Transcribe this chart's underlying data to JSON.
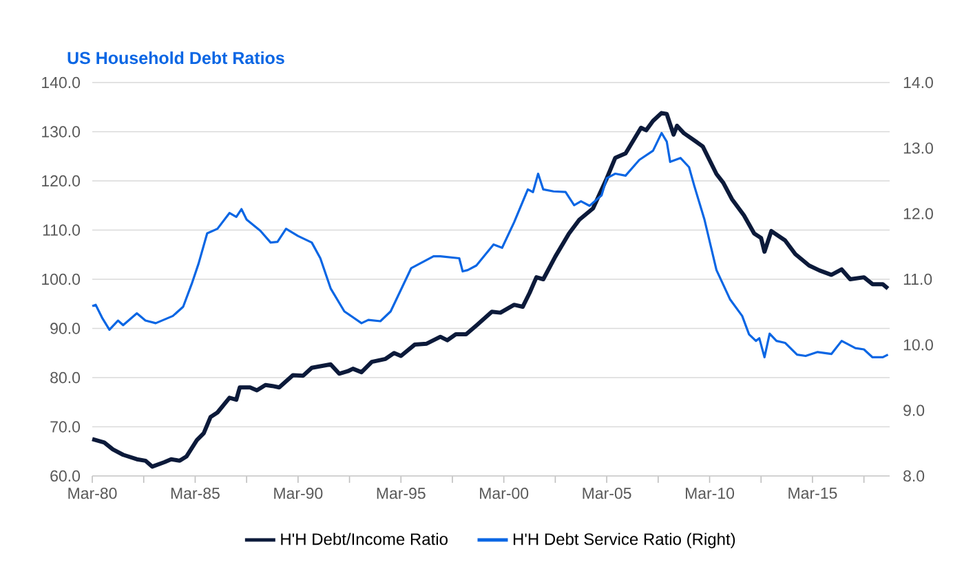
{
  "chart_data": {
    "type": "line",
    "title": "US Household  Debt Ratios",
    "xlim": [
      "1980-03",
      "2018-12"
    ],
    "xticks": [
      {
        "value": "1980-03",
        "label": "Mar-80"
      },
      {
        "value": "1982-09",
        "label": null
      },
      {
        "value": "1985-03",
        "label": "Mar-85"
      },
      {
        "value": "1987-09",
        "label": null
      },
      {
        "value": "1990-03",
        "label": "Mar-90"
      },
      {
        "value": "1992-09",
        "label": null
      },
      {
        "value": "1995-03",
        "label": "Mar-95"
      },
      {
        "value": "1997-09",
        "label": null
      },
      {
        "value": "2000-03",
        "label": "Mar-00"
      },
      {
        "value": "2002-09",
        "label": null
      },
      {
        "value": "2005-03",
        "label": "Mar-05"
      },
      {
        "value": "2007-09",
        "label": null
      },
      {
        "value": "2010-03",
        "label": "Mar-10"
      },
      {
        "value": "2012-09",
        "label": null
      },
      {
        "value": "2015-03",
        "label": "Mar-15"
      },
      {
        "value": "2017-09",
        "label": null
      }
    ],
    "ylim": [
      60,
      140
    ],
    "yticks": [
      {
        "value": 60,
        "label": "60.0"
      },
      {
        "value": 70,
        "label": "70.0"
      },
      {
        "value": 80,
        "label": "80.0"
      },
      {
        "value": 90,
        "label": "90.0"
      },
      {
        "value": 100,
        "label": "100.0"
      },
      {
        "value": 110,
        "label": "110.0"
      },
      {
        "value": 120,
        "label": "120.0"
      },
      {
        "value": 130,
        "label": "130.0"
      },
      {
        "value": 140,
        "label": "140.0"
      }
    ],
    "y2lim": [
      8,
      14
    ],
    "y2ticks": [
      {
        "value": 8,
        "label": "8.0"
      },
      {
        "value": 9,
        "label": "9.0"
      },
      {
        "value": 10,
        "label": "10.0"
      },
      {
        "value": 11,
        "label": "11.0"
      },
      {
        "value": 12,
        "label": "12.0"
      },
      {
        "value": 13,
        "label": "13.0"
      },
      {
        "value": 14,
        "label": "14.0"
      }
    ],
    "grid": "y",
    "legend": "bottom",
    "series": [
      {
        "name": "H'H Debt/Income Ratio",
        "color": "#0c1a3a",
        "x": [
          "1980-03",
          "1980-10",
          "1981-03",
          "1981-09",
          "1982-05",
          "1982-10",
          "1983-02",
          "1983-09",
          "1984-01",
          "1984-06",
          "1984-10",
          "1985-04",
          "1985-08",
          "1985-12",
          "1986-04",
          "1986-11",
          "1987-03",
          "1987-05",
          "1987-11",
          "1988-03",
          "1988-08",
          "1988-12",
          "1989-04",
          "1989-12",
          "1990-06",
          "1990-11",
          "1991-10",
          "1992-03",
          "1992-08",
          "1992-11",
          "1993-04",
          "1993-10",
          "1994-06",
          "1994-11",
          "1995-03",
          "1995-11",
          "1996-06",
          "1997-02",
          "1997-06",
          "1997-11",
          "1998-05",
          "1998-11",
          "1999-08",
          "2000-01",
          "2000-09",
          "2001-02",
          "2001-06",
          "2001-10",
          "2002-02",
          "2002-09",
          "2003-05",
          "2003-11",
          "2004-07",
          "2005-03",
          "2005-08",
          "2006-02",
          "2006-11",
          "2007-02",
          "2007-06",
          "2007-11",
          "2008-02",
          "2008-06",
          "2008-08",
          "2008-12",
          "2009-07",
          "2009-11",
          "2010-07",
          "2010-11",
          "2011-04",
          "2011-11",
          "2012-05",
          "2012-09",
          "2012-11",
          "2013-03",
          "2013-11",
          "2014-05",
          "2015-01",
          "2015-07",
          "2016-02",
          "2016-08",
          "2017-01",
          "2017-09",
          "2018-02",
          "2018-08",
          "2018-11"
        ],
        "values": [
          67.5,
          66.8,
          65.4,
          64.3,
          63.4,
          63.1,
          61.9,
          62.8,
          63.4,
          63.1,
          64.0,
          67.3,
          68.7,
          72.0,
          72.9,
          75.9,
          75.5,
          78.0,
          78.0,
          77.4,
          78.5,
          78.3,
          78.0,
          80.5,
          80.4,
          82.0,
          82.7,
          80.8,
          81.3,
          81.8,
          81.1,
          83.2,
          83.8,
          85.0,
          84.4,
          86.7,
          86.9,
          88.3,
          87.6,
          88.8,
          88.8,
          90.6,
          93.4,
          93.2,
          94.8,
          94.4,
          97.2,
          100.4,
          100.0,
          104.6,
          109.3,
          112.1,
          114.4,
          120.5,
          124.7,
          125.6,
          130.8,
          130.3,
          132.2,
          133.8,
          133.6,
          129.4,
          131.2,
          129.7,
          128.0,
          127.0,
          121.4,
          119.6,
          116.3,
          113.0,
          109.3,
          108.4,
          105.6,
          109.8,
          107.9,
          105.1,
          102.8,
          101.8,
          100.9,
          102.0,
          100.0,
          100.4,
          99.0,
          99.0,
          98.1
        ]
      },
      {
        "name": "H'H Debt Service Ratio (Right)",
        "color": "#0a66e4",
        "axis": "y2",
        "x": [
          "1980-03",
          "1980-05",
          "1980-09",
          "1981-01",
          "1981-06",
          "1981-09",
          "1982-05",
          "1982-10",
          "1983-04",
          "1984-02",
          "1984-08",
          "1985-01",
          "1985-05",
          "1985-10",
          "1986-04",
          "1986-11",
          "1987-03",
          "1987-06",
          "1987-09",
          "1988-05",
          "1988-11",
          "1989-03",
          "1989-08",
          "1990-03",
          "1990-11",
          "1991-04",
          "1991-10",
          "1992-06",
          "1993-04",
          "1993-08",
          "1994-03",
          "1994-09",
          "1995-09",
          "1996-10",
          "1997-02",
          "1998-01",
          "1998-03",
          "1998-06",
          "1998-11",
          "1999-09",
          "2000-02",
          "2000-09",
          "2001-05",
          "2001-08",
          "2001-11",
          "2002-02",
          "2002-08",
          "2003-03",
          "2003-08",
          "2003-12",
          "2004-05",
          "2004-12",
          "2005-03",
          "2005-08",
          "2006-02",
          "2006-10",
          "2007-06",
          "2007-11",
          "2008-02",
          "2008-04",
          "2008-10",
          "2009-03",
          "2009-06",
          "2009-12",
          "2010-07",
          "2011-03",
          "2011-10",
          "2012-02",
          "2012-06",
          "2012-08",
          "2012-11",
          "2013-02",
          "2013-06",
          "2013-11",
          "2014-06",
          "2014-11",
          "2015-06",
          "2016-02",
          "2016-08",
          "2017-04",
          "2017-09",
          "2018-02",
          "2018-08",
          "2018-11"
        ],
        "values": [
          10.59,
          10.61,
          10.4,
          10.23,
          10.37,
          10.3,
          10.48,
          10.37,
          10.33,
          10.44,
          10.58,
          10.93,
          11.24,
          11.7,
          11.77,
          12.01,
          11.95,
          12.07,
          11.91,
          11.74,
          11.56,
          11.57,
          11.77,
          11.66,
          11.56,
          11.32,
          10.86,
          10.51,
          10.33,
          10.38,
          10.36,
          10.51,
          11.17,
          11.35,
          11.35,
          11.32,
          11.12,
          11.14,
          11.21,
          11.53,
          11.48,
          11.87,
          12.37,
          12.33,
          12.61,
          12.37,
          12.34,
          12.33,
          12.13,
          12.19,
          12.12,
          12.28,
          12.54,
          12.61,
          12.58,
          12.82,
          12.96,
          13.23,
          13.1,
          12.79,
          12.85,
          12.71,
          12.43,
          11.91,
          11.14,
          10.69,
          10.44,
          10.16,
          10.06,
          10.1,
          9.81,
          10.17,
          10.06,
          10.03,
          9.85,
          9.83,
          9.89,
          9.86,
          10.06,
          9.95,
          9.93,
          9.81,
          9.81,
          9.85
        ]
      }
    ]
  }
}
